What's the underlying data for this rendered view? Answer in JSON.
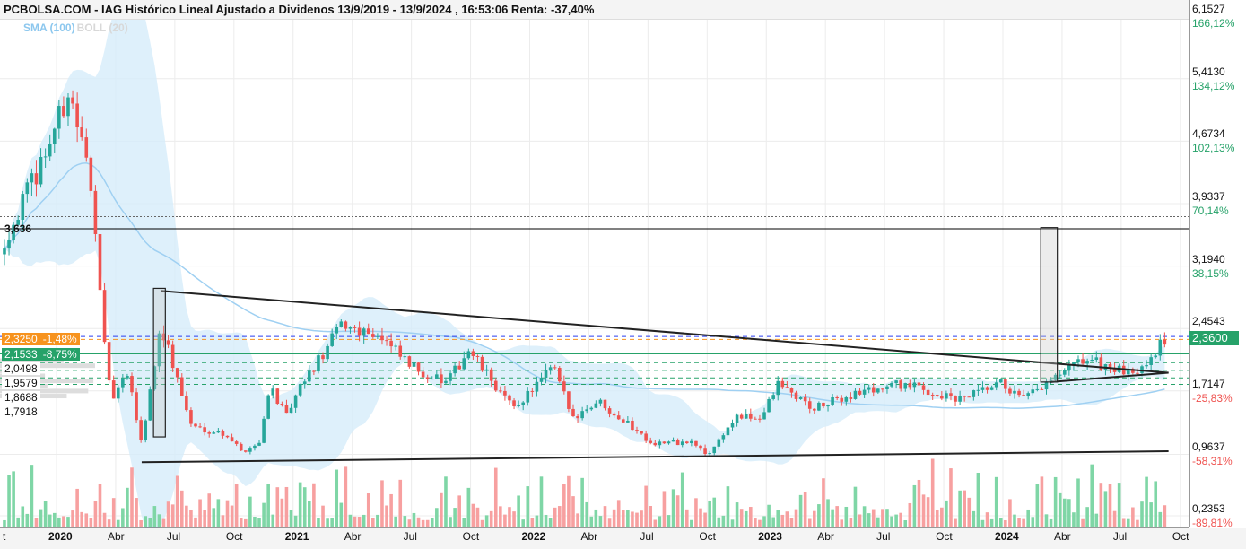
{
  "title": "PCBOLSA.COM - IAG Histórico Lineal Ajustado a Dividenos 13/9/2019 - 13/9/2024 , 16:53:06 Renta: -37,40%",
  "legend": {
    "sma": "SMA (100)",
    "boll": "BOLL (20)"
  },
  "colors": {
    "up": "#26a69a",
    "up_light": "#7fd6a6",
    "down": "#ef5350",
    "down_light": "#f7a0a0",
    "band": "#d6ecfa",
    "sma": "#9fd0f2",
    "orange": "#f7931e",
    "green_line": "#26a269"
  },
  "chart_data": {
    "type": "candlestick",
    "title": "IAG Histórico Lineal Ajustado a Dividenos",
    "ylim": [
      0.2353,
      6.1527
    ],
    "y_ticks": [
      {
        "value": 6.1527,
        "label": "6,1527",
        "pct": "166,12%"
      },
      {
        "value": 5.413,
        "label": "5,4130",
        "pct": "134,12%"
      },
      {
        "value": 4.6734,
        "label": "4,6734",
        "pct": "102,13%"
      },
      {
        "value": 3.9337,
        "label": "3,9337",
        "pct": "70,14%"
      },
      {
        "value": 3.194,
        "label": "3,1940",
        "pct": "38,15%"
      },
      {
        "value": 2.4543,
        "label": "2,4543",
        "pct": ""
      },
      {
        "value": 1.7147,
        "label": "1,7147",
        "pct": "-25,83%"
      },
      {
        "value": 0.9637,
        "label": "0,9637",
        "pct": "-58,31%"
      },
      {
        "value": 0.2353,
        "label": "0,2353",
        "pct": "-89,81%"
      }
    ],
    "x_ticks": [
      {
        "t": 2019.75,
        "label": "t"
      },
      {
        "t": 2020.0,
        "label": "2020",
        "bold": true
      },
      {
        "t": 2020.25,
        "label": "Abr"
      },
      {
        "t": 2020.5,
        "label": "Jul"
      },
      {
        "t": 2020.75,
        "label": "Oct"
      },
      {
        "t": 2021.0,
        "label": "2021",
        "bold": true
      },
      {
        "t": 2021.25,
        "label": "Abr"
      },
      {
        "t": 2021.5,
        "label": "Jul"
      },
      {
        "t": 2021.75,
        "label": "Oct"
      },
      {
        "t": 2022.0,
        "label": "2022",
        "bold": true
      },
      {
        "t": 2022.25,
        "label": "Abr"
      },
      {
        "t": 2022.5,
        "label": "Jul"
      },
      {
        "t": 2022.75,
        "label": "Oct"
      },
      {
        "t": 2023.0,
        "label": "2023",
        "bold": true
      },
      {
        "t": 2023.25,
        "label": "Abr"
      },
      {
        "t": 2023.5,
        "label": "Jul"
      },
      {
        "t": 2023.75,
        "label": "Oct"
      },
      {
        "t": 2024.0,
        "label": "2024",
        "bold": true
      },
      {
        "t": 2024.25,
        "label": "Abr"
      },
      {
        "t": 2024.5,
        "label": "Jul"
      },
      {
        "t": 2024.75,
        "label": "Oct"
      }
    ],
    "approx_close": [
      [
        2019.78,
        3.5
      ],
      [
        2019.9,
        4.2
      ],
      [
        2020.02,
        5.0
      ],
      [
        2020.05,
        5.3
      ],
      [
        2020.12,
        4.5
      ],
      [
        2020.17,
        3.6
      ],
      [
        2020.2,
        2.3
      ],
      [
        2020.23,
        1.6
      ],
      [
        2020.3,
        1.9
      ],
      [
        2020.36,
        1.1
      ],
      [
        2020.44,
        2.5
      ],
      [
        2020.57,
        1.3
      ],
      [
        2020.72,
        1.2
      ],
      [
        2020.78,
        1.0
      ],
      [
        2020.86,
        1.1
      ],
      [
        2020.9,
        1.8
      ],
      [
        2020.97,
        1.4
      ],
      [
        2021.04,
        1.8
      ],
      [
        2021.14,
        2.2
      ],
      [
        2021.2,
        2.5
      ],
      [
        2021.35,
        2.4
      ],
      [
        2021.5,
        2.0
      ],
      [
        2021.65,
        1.8
      ],
      [
        2021.74,
        2.2
      ],
      [
        2021.93,
        1.5
      ],
      [
        2022.1,
        2.0
      ],
      [
        2022.18,
        1.4
      ],
      [
        2022.29,
        1.6
      ],
      [
        2022.52,
        1.1
      ],
      [
        2022.69,
        1.1
      ],
      [
        2022.75,
        0.95
      ],
      [
        2022.87,
        1.4
      ],
      [
        2022.98,
        1.4
      ],
      [
        2023.05,
        1.8
      ],
      [
        2023.2,
        1.5
      ],
      [
        2023.39,
        1.7
      ],
      [
        2023.58,
        1.8
      ],
      [
        2023.81,
        1.6
      ],
      [
        2024.0,
        1.8
      ],
      [
        2024.08,
        1.6
      ],
      [
        2024.19,
        1.8
      ],
      [
        2024.35,
        2.1
      ],
      [
        2024.54,
        1.9
      ],
      [
        2024.7,
        2.36
      ]
    ],
    "last": {
      "value": 2.36,
      "label": "2,3600"
    },
    "levels": [
      {
        "value": 3.636,
        "label": "3,636",
        "style": "solid",
        "color": "#000"
      },
      {
        "value": 3.78,
        "style": "dotted",
        "color": "#666"
      },
      {
        "value": 2.36,
        "style": "dashed",
        "color": "#2a3cf0"
      },
      {
        "value": 2.325,
        "label": "2,3250",
        "pct": "-1,48%",
        "style": "dashed",
        "color": "#f7931e"
      },
      {
        "value": 2.1533,
        "label": "2,1533",
        "pct": "-8,75%",
        "style": "solid",
        "color": "#26a269"
      },
      {
        "value": 2.0498,
        "label": "2,0498",
        "style": "dashed",
        "color": "#26a269"
      },
      {
        "value": 1.9579,
        "label": "1,9579",
        "style": "dashed",
        "color": "#26a269"
      },
      {
        "value": 1.8688,
        "label": "1,8688",
        "style": "dashed",
        "color": "#26a269"
      },
      {
        "value": 1.7918,
        "label": "1,7918",
        "style": "dashed",
        "color": "#26a269"
      }
    ],
    "trendlines": [
      [
        [
          2020.44,
          2.9
        ],
        [
          2024.7,
          1.93
        ]
      ],
      [
        [
          2020.36,
          0.87
        ],
        [
          2024.7,
          1.0
        ]
      ],
      [
        [
          2024.2,
          1.82
        ],
        [
          2024.7,
          1.93
        ]
      ]
    ],
    "boxes": [
      [
        [
          2020.41,
          2.93
        ],
        [
          2020.46,
          1.17
        ]
      ],
      [
        [
          2024.16,
          3.65
        ],
        [
          2024.23,
          1.82
        ]
      ]
    ]
  }
}
